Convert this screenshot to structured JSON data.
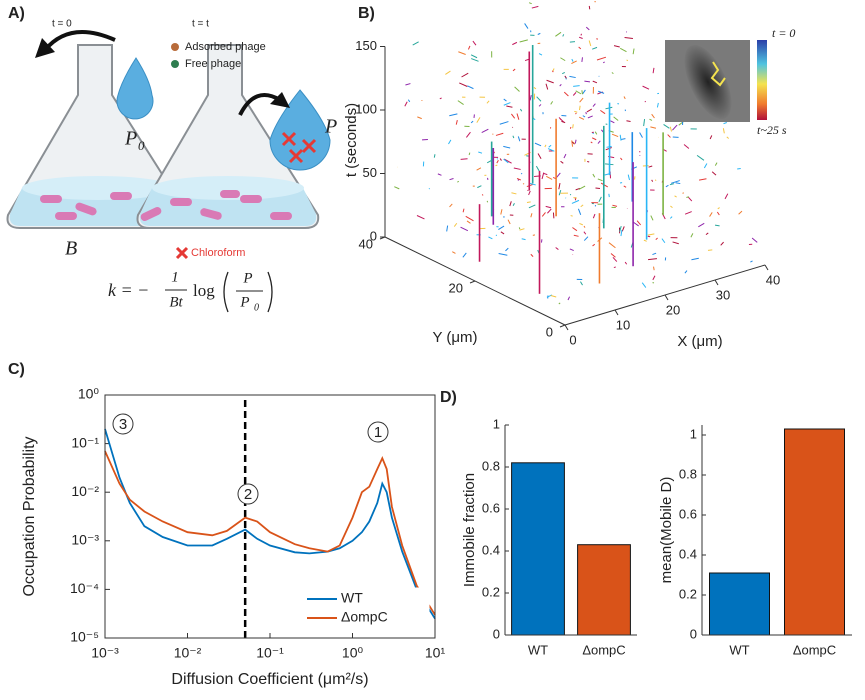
{
  "panel_labels": [
    "A)",
    "B)",
    "C)",
    "D)"
  ],
  "panel_a": {
    "time_labels": [
      "t = 0",
      "t = t"
    ],
    "legend": [
      "Adsorbed phage",
      "Free phage"
    ],
    "p0": "P",
    "p0_sub": "0",
    "p": "P",
    "b": "B",
    "chloroform": "Chloroform",
    "formula": {
      "lhs": "k = −",
      "num": "1",
      "den": "Bt",
      "log": "log",
      "frac_num": "P",
      "frac_den": "P",
      "frac_den_sub": "0"
    }
  },
  "panel_b": {
    "zlabel": "t (seconds)",
    "ylabel": "Y (μm)",
    "xlabel": "X (μm)",
    "zticks": [
      0,
      50,
      100,
      150
    ],
    "xticks": [
      0,
      10,
      20,
      30,
      40
    ],
    "yticks": [
      0,
      20,
      40
    ],
    "colorbar": [
      "t = 0",
      "t~25 s"
    ]
  },
  "chart_data": [
    {
      "type": "line",
      "xlabel": "Diffusion Coefficient (μm²/s)",
      "ylabel": "Occupation Probability",
      "log_x": true,
      "log_y": true,
      "x": [
        0.001,
        0.0015,
        0.002,
        0.003,
        0.005,
        0.01,
        0.02,
        0.03,
        0.05,
        0.07,
        0.1,
        0.2,
        0.3,
        0.5,
        0.7,
        1,
        1.3,
        1.6,
        2,
        2.3,
        2.6,
        3,
        4,
        6,
        10
      ],
      "series": [
        {
          "name": "WT",
          "color": "#0072BD",
          "values": [
            0.2,
            0.02,
            0.006,
            0.002,
            0.0012,
            0.0008,
            0.0008,
            0.0011,
            0.0017,
            0.0011,
            0.0008,
            0.00058,
            0.00055,
            0.0006,
            0.0007,
            0.001,
            0.0015,
            0.0025,
            0.006,
            0.015,
            0.01,
            0.003,
            0.0006,
            0.0001,
            2.5e-05
          ]
        },
        {
          "name": "ΔompC",
          "color": "#D95319",
          "values": [
            0.07,
            0.015,
            0.007,
            0.004,
            0.0025,
            0.0015,
            0.0013,
            0.0016,
            0.003,
            0.0025,
            0.0015,
            0.00085,
            0.0007,
            0.0006,
            0.0008,
            0.003,
            0.01,
            0.013,
            0.03,
            0.05,
            0.03,
            0.005,
            0.0008,
            0.00012,
            3e-05
          ]
        }
      ],
      "xlim": [
        0.001,
        10
      ],
      "ylim": [
        1e-05,
        1
      ],
      "xticks": [
        {
          "value": 0.001,
          "label": "10⁻³"
        },
        {
          "value": 0.01,
          "label": "10⁻²"
        },
        {
          "value": 0.1,
          "label": "10⁻¹"
        },
        {
          "value": 1,
          "label": "10⁰"
        },
        {
          "value": 10,
          "label": "10¹"
        }
      ],
      "yticks": [
        {
          "value": 1e-05,
          "label": "10⁻⁵"
        },
        {
          "value": 0.0001,
          "label": "10⁻⁴"
        },
        {
          "value": 0.001,
          "label": "10⁻³"
        },
        {
          "value": 0.01,
          "label": "10⁻²"
        },
        {
          "value": 0.1,
          "label": "10⁻¹"
        },
        {
          "value": 1,
          "label": "10⁰"
        }
      ],
      "vline": 0.05,
      "annotations": [
        "3",
        "2",
        "1"
      ],
      "legend_position": "lower right"
    },
    {
      "type": "bar",
      "ylabel": "Immobile fraction",
      "categories": [
        "WT",
        "ΔompC"
      ],
      "values": [
        0.82,
        0.43
      ],
      "colors": [
        "#0072BD",
        "#D95319"
      ],
      "ylim": [
        0,
        1
      ],
      "yticks": [
        0,
        0.2,
        0.4,
        0.6,
        0.8,
        1
      ]
    },
    {
      "type": "bar",
      "ylabel": "mean(Mobile D)",
      "categories": [
        "WT",
        "ΔompC"
      ],
      "values": [
        0.31,
        1.03
      ],
      "colors": [
        "#0072BD",
        "#D95319"
      ],
      "ylim": [
        0,
        1.05
      ],
      "yticks": [
        0,
        0.2,
        0.4,
        0.6,
        0.8,
        1
      ]
    }
  ]
}
